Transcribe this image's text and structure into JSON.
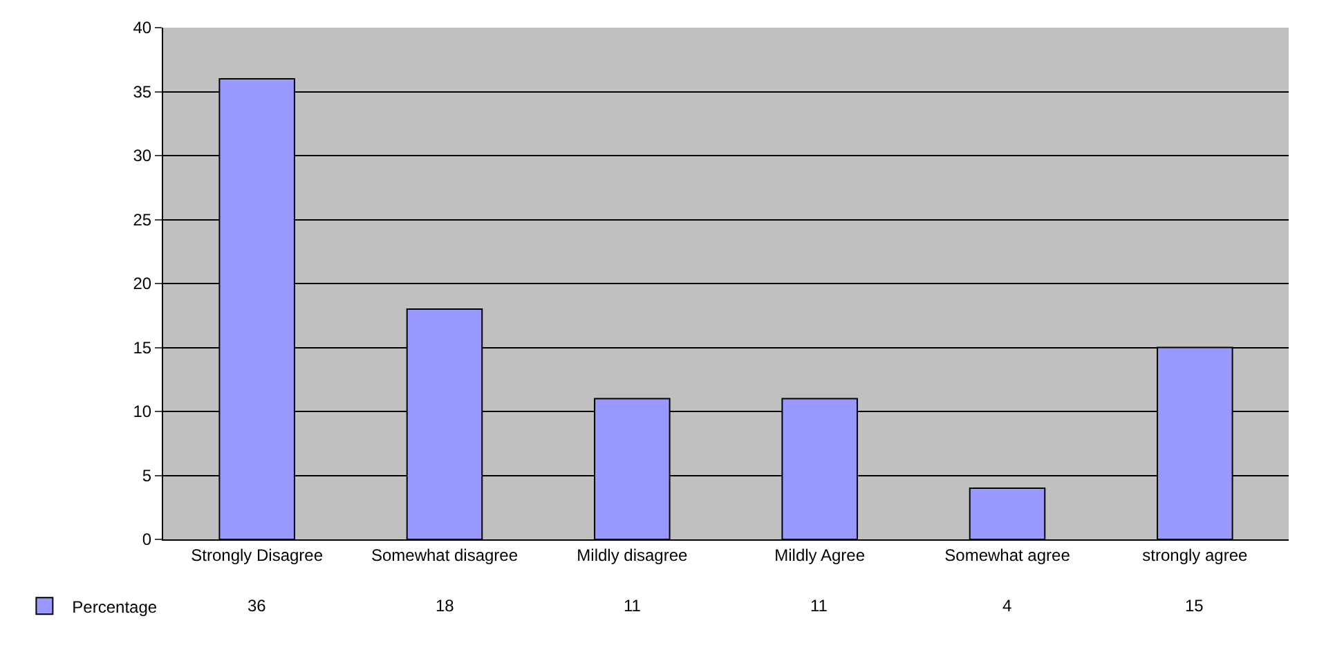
{
  "chart_data": {
    "type": "bar",
    "categories": [
      "Strongly Disagree",
      "Somewhat disagree",
      "Mildly disagree",
      "Mildly Agree",
      "Somewhat agree",
      "strongly agree"
    ],
    "series": [
      {
        "name": "Percentage",
        "color": "#9999ff",
        "values": [
          36,
          18,
          11,
          11,
          4,
          15
        ]
      }
    ],
    "ylim": [
      0,
      40
    ],
    "yticks": [
      0,
      5,
      10,
      15,
      20,
      25,
      30,
      35,
      40
    ],
    "grid": "y",
    "legend": "bottom left",
    "data_labels": true
  }
}
